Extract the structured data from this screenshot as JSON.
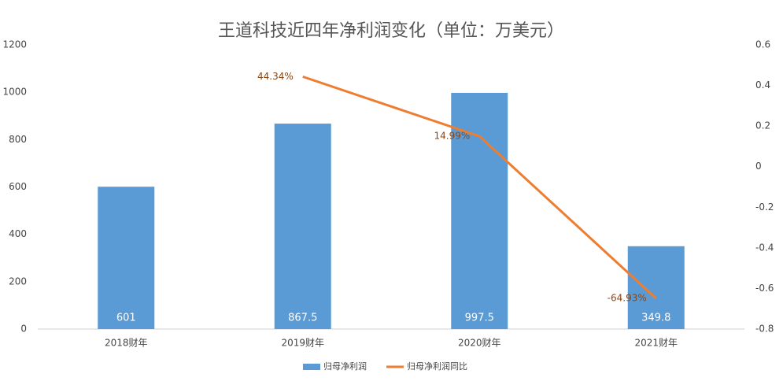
{
  "chart_data": {
    "type": "bar_line",
    "title": "王道科技近四年净利润变化（单位：万美元）",
    "categories": [
      "2018财年",
      "2019财年",
      "2020财年",
      "2021财年"
    ],
    "series": [
      {
        "name": "归母净利润",
        "type": "bar",
        "color": "#5b9bd5",
        "values": [
          601,
          867.5,
          997.5,
          349.8
        ]
      },
      {
        "name": "归母净利润同比",
        "type": "line",
        "axis": "y2",
        "color": "#ed7d31",
        "values": [
          null,
          0.4434,
          0.1499,
          -0.6493
        ],
        "value_labels": [
          null,
          "44.34%",
          "14.99%",
          "-64.93%"
        ]
      }
    ],
    "ylim": [
      0,
      1200
    ],
    "yticks": [
      0,
      200,
      400,
      600,
      800,
      1000,
      1200
    ],
    "y2lim": [
      -0.8,
      0.6
    ],
    "y2ticks": [
      -0.8,
      -0.6,
      -0.4,
      -0.2,
      0,
      0.2,
      0.4,
      0.6
    ],
    "legend": "bottom"
  }
}
